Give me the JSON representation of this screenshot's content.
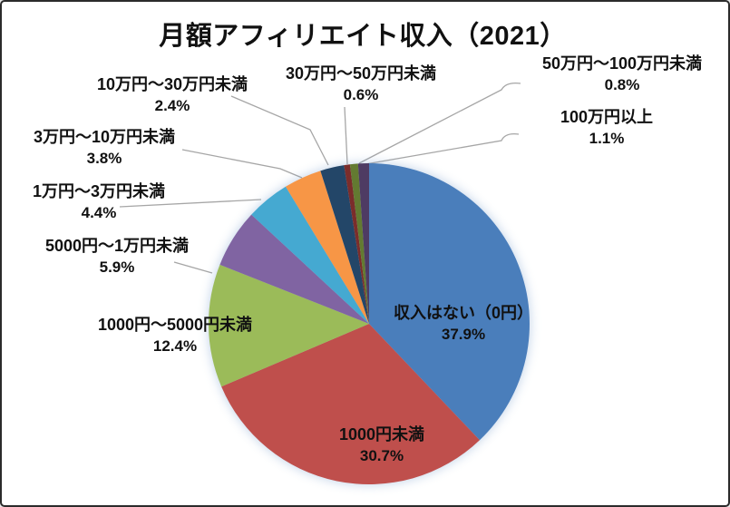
{
  "chart_data": {
    "type": "pie",
    "title": "月額アフィリエイト収入（2021）",
    "unit": "%",
    "start_angle_deg": 0,
    "direction": "clockwise",
    "legend": "none",
    "slices": [
      {
        "label": "収入はない（0円）",
        "value": 37.9,
        "pct_text": "37.9%",
        "color": "#4A7EBB",
        "label_placement": "inside"
      },
      {
        "label": "1000円未満",
        "value": 30.7,
        "pct_text": "30.7%",
        "color": "#BF4F4C",
        "label_placement": "inside"
      },
      {
        "label": "1000円～5000円未満",
        "value": 12.4,
        "pct_text": "12.4%",
        "color": "#9BBB59",
        "label_placement": "outside-left"
      },
      {
        "label": "5000円～1万円未満",
        "value": 5.9,
        "pct_text": "5.9%",
        "color": "#8064A2",
        "label_placement": "outside-left"
      },
      {
        "label": "1万円～3万円未満",
        "value": 4.4,
        "pct_text": "4.4%",
        "color": "#45A9D1",
        "label_placement": "outside-left"
      },
      {
        "label": "3万円～10万円未満",
        "value": 3.8,
        "pct_text": "3.8%",
        "color": "#F79646",
        "label_placement": "outside-left"
      },
      {
        "label": "10万円～30万円未満",
        "value": 2.4,
        "pct_text": "2.4%",
        "color": "#234668",
        "label_placement": "outside-top-left"
      },
      {
        "label": "30万円～50万円未満",
        "value": 0.6,
        "pct_text": "0.6%",
        "color": "#7B2D2B",
        "label_placement": "outside-top"
      },
      {
        "label": "50万円～100万円未満",
        "value": 0.8,
        "pct_text": "0.8%",
        "color": "#637A31",
        "label_placement": "outside-top-right"
      },
      {
        "label": "100万円以上",
        "value": 1.1,
        "pct_text": "1.1%",
        "color": "#4E3B63",
        "label_placement": "outside-right"
      }
    ]
  },
  "colors": {
    "background": "#FFFFFF",
    "border": "#2B2B2B",
    "text": "#111111",
    "leader_line": "#A6A6A6"
  }
}
